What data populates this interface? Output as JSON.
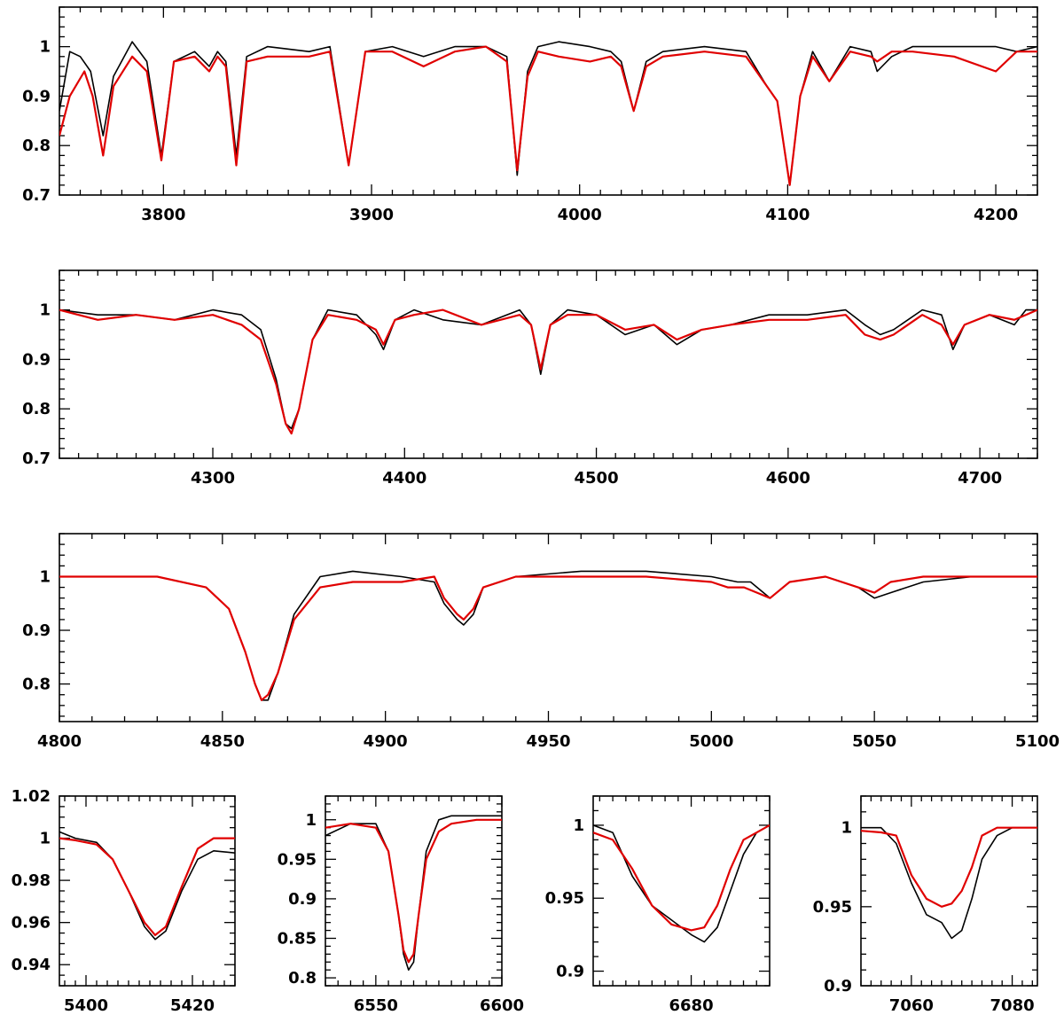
{
  "chart_data": [
    {
      "type": "line",
      "xlim": [
        3750,
        4220
      ],
      "ylim": [
        0.7,
        1.08
      ],
      "xticks": [
        3800,
        3900,
        4000,
        4100,
        4200
      ],
      "x_minor": 10,
      "yticks": [
        0.7,
        0.8,
        0.9,
        1
      ],
      "y_minor": 0.02,
      "series": [
        {
          "color": "#000000",
          "x": [
            3750,
            3755,
            3760,
            3765,
            3771,
            3776,
            3785,
            3792,
            3799,
            3805,
            3815,
            3822,
            3826,
            3830,
            3835,
            3840,
            3850,
            3870,
            3880,
            3889,
            3897,
            3910,
            3925,
            3940,
            3955,
            3965,
            3970,
            3975,
            3980,
            3990,
            4005,
            4015,
            4020,
            4026,
            4032,
            4040,
            4060,
            4080,
            4090,
            4095,
            4101,
            4106,
            4112,
            4120,
            4130,
            4140,
            4143,
            4150,
            4160,
            4180,
            4200,
            4210,
            4220
          ],
          "y": [
            0.87,
            0.99,
            0.98,
            0.95,
            0.82,
            0.94,
            1.01,
            0.97,
            0.78,
            0.97,
            0.99,
            0.96,
            0.99,
            0.97,
            0.78,
            0.98,
            1.0,
            0.99,
            1.0,
            0.76,
            0.99,
            1.0,
            0.98,
            1.0,
            1.0,
            0.98,
            0.74,
            0.95,
            1.0,
            1.01,
            1.0,
            0.99,
            0.97,
            0.87,
            0.97,
            0.99,
            1.0,
            0.99,
            0.92,
            0.89,
            0.72,
            0.9,
            0.99,
            0.93,
            1.0,
            0.99,
            0.95,
            0.98,
            1.0,
            1.0,
            1.0,
            0.99,
            1.0
          ]
        },
        {
          "color": "#e00000",
          "x": [
            3750,
            3755,
            3762,
            3766,
            3771,
            3776,
            3785,
            3792,
            3799,
            3805,
            3815,
            3822,
            3826,
            3830,
            3835,
            3840,
            3850,
            3870,
            3880,
            3889,
            3897,
            3910,
            3925,
            3940,
            3955,
            3965,
            3970,
            3975,
            3980,
            3990,
            4005,
            4015,
            4020,
            4026,
            4032,
            4040,
            4060,
            4080,
            4090,
            4095,
            4101,
            4106,
            4112,
            4120,
            4130,
            4140,
            4143,
            4150,
            4160,
            4180,
            4200,
            4210,
            4220
          ],
          "y": [
            0.82,
            0.9,
            0.95,
            0.9,
            0.78,
            0.92,
            0.98,
            0.95,
            0.77,
            0.97,
            0.98,
            0.95,
            0.98,
            0.96,
            0.76,
            0.97,
            0.98,
            0.98,
            0.99,
            0.76,
            0.99,
            0.99,
            0.96,
            0.99,
            1.0,
            0.97,
            0.75,
            0.94,
            0.99,
            0.98,
            0.97,
            0.98,
            0.96,
            0.87,
            0.96,
            0.98,
            0.99,
            0.98,
            0.92,
            0.89,
            0.72,
            0.9,
            0.98,
            0.93,
            0.99,
            0.98,
            0.97,
            0.99,
            0.99,
            0.98,
            0.95,
            0.99,
            0.99
          ]
        }
      ]
    },
    {
      "type": "line",
      "xlim": [
        4220,
        4730
      ],
      "ylim": [
        0.7,
        1.08
      ],
      "xticks": [
        4300,
        4400,
        4500,
        4600,
        4700
      ],
      "x_minor": 10,
      "yticks": [
        0.7,
        0.8,
        0.9,
        1
      ],
      "y_minor": 0.02,
      "series": [
        {
          "color": "#000000",
          "x": [
            4220,
            4240,
            4260,
            4280,
            4300,
            4315,
            4325,
            4333,
            4338,
            4341,
            4345,
            4352,
            4360,
            4375,
            4385,
            4389,
            4395,
            4405,
            4420,
            4440,
            4460,
            4466,
            4471,
            4476,
            4485,
            4500,
            4515,
            4530,
            4542,
            4555,
            4570,
            4590,
            4610,
            4630,
            4640,
            4648,
            4655,
            4670,
            4680,
            4686,
            4692,
            4705,
            4718,
            4724,
            4730
          ],
          "y": [
            1.0,
            0.99,
            0.99,
            0.98,
            1.0,
            0.99,
            0.96,
            0.86,
            0.77,
            0.76,
            0.8,
            0.94,
            1.0,
            0.99,
            0.95,
            0.92,
            0.98,
            1.0,
            0.98,
            0.97,
            1.0,
            0.97,
            0.87,
            0.97,
            1.0,
            0.99,
            0.95,
            0.97,
            0.93,
            0.96,
            0.97,
            0.99,
            0.99,
            1.0,
            0.97,
            0.95,
            0.96,
            1.0,
            0.99,
            0.92,
            0.97,
            0.99,
            0.97,
            1.0,
            1.0
          ]
        },
        {
          "color": "#e00000",
          "x": [
            4220,
            4240,
            4260,
            4280,
            4300,
            4315,
            4325,
            4333,
            4338,
            4341,
            4345,
            4352,
            4360,
            4375,
            4385,
            4389,
            4395,
            4405,
            4420,
            4440,
            4460,
            4466,
            4471,
            4476,
            4485,
            4500,
            4515,
            4530,
            4542,
            4555,
            4570,
            4590,
            4610,
            4630,
            4640,
            4648,
            4655,
            4670,
            4680,
            4686,
            4692,
            4705,
            4718,
            4724,
            4730
          ],
          "y": [
            1.0,
            0.98,
            0.99,
            0.98,
            0.99,
            0.97,
            0.94,
            0.85,
            0.77,
            0.75,
            0.8,
            0.94,
            0.99,
            0.98,
            0.96,
            0.93,
            0.98,
            0.99,
            1.0,
            0.97,
            0.99,
            0.97,
            0.88,
            0.97,
            0.99,
            0.99,
            0.96,
            0.97,
            0.94,
            0.96,
            0.97,
            0.98,
            0.98,
            0.99,
            0.95,
            0.94,
            0.95,
            0.99,
            0.97,
            0.93,
            0.97,
            0.99,
            0.98,
            0.99,
            1.0
          ]
        }
      ]
    },
    {
      "type": "line",
      "xlim": [
        4800,
        5100
      ],
      "ylim": [
        0.73,
        1.08
      ],
      "xticks": [
        4800,
        4850,
        4900,
        4950,
        5000,
        5050,
        5100
      ],
      "x_minor": 10,
      "yticks": [
        0.8,
        0.9,
        1
      ],
      "y_minor": 0.02,
      "series": [
        {
          "color": "#000000",
          "x": [
            4800,
            4830,
            4845,
            4852,
            4857,
            4860,
            4862,
            4864,
            4867,
            4872,
            4880,
            4890,
            4905,
            4915,
            4918,
            4922,
            4924,
            4927,
            4930,
            4940,
            4960,
            4980,
            5000,
            5008,
            5012,
            5018,
            5024,
            5035,
            5045,
            5050,
            5055,
            5065,
            5080,
            5100
          ],
          "y": [
            1.0,
            1.0,
            0.98,
            0.94,
            0.86,
            0.8,
            0.77,
            0.77,
            0.82,
            0.93,
            1.0,
            1.01,
            1.0,
            0.99,
            0.95,
            0.92,
            0.91,
            0.93,
            0.98,
            1.0,
            1.01,
            1.01,
            1.0,
            0.99,
            0.99,
            0.96,
            0.99,
            1.0,
            0.98,
            0.96,
            0.97,
            0.99,
            1.0,
            1.0
          ]
        },
        {
          "color": "#e00000",
          "x": [
            4800,
            4830,
            4845,
            4852,
            4857,
            4860,
            4862,
            4864,
            4867,
            4872,
            4880,
            4890,
            4905,
            4915,
            4918,
            4922,
            4924,
            4927,
            4930,
            4940,
            4960,
            4980,
            5000,
            5005,
            5010,
            5014,
            5018,
            5024,
            5035,
            5045,
            5050,
            5055,
            5065,
            5080,
            5100
          ],
          "y": [
            1.0,
            1.0,
            0.98,
            0.94,
            0.86,
            0.8,
            0.77,
            0.78,
            0.82,
            0.92,
            0.98,
            0.99,
            0.99,
            1.0,
            0.96,
            0.93,
            0.92,
            0.94,
            0.98,
            1.0,
            1.0,
            1.0,
            0.99,
            0.98,
            0.98,
            0.97,
            0.96,
            0.99,
            1.0,
            0.98,
            0.97,
            0.99,
            1.0,
            1.0,
            1.0
          ]
        }
      ]
    },
    {
      "type": "line",
      "xlim": [
        5395,
        5428
      ],
      "ylim": [
        0.93,
        1.02
      ],
      "xticks": [
        5400,
        5420
      ],
      "x_minor": 2,
      "yticks": [
        0.94,
        0.96,
        0.98,
        1,
        1.02
      ],
      "y_minor": 0.005,
      "series": [
        {
          "color": "#000000",
          "x": [
            5395,
            5398,
            5402,
            5405,
            5408,
            5411,
            5413,
            5415,
            5418,
            5421,
            5424,
            5428
          ],
          "y": [
            1.003,
            1.0,
            0.998,
            0.99,
            0.975,
            0.958,
            0.952,
            0.956,
            0.975,
            0.99,
            0.994,
            0.993
          ]
        },
        {
          "color": "#e00000",
          "x": [
            5395,
            5398,
            5402,
            5405,
            5408,
            5411,
            5413,
            5415,
            5418,
            5421,
            5424,
            5428
          ],
          "y": [
            1.0,
            0.999,
            0.997,
            0.99,
            0.975,
            0.96,
            0.954,
            0.958,
            0.977,
            0.995,
            1.0,
            1.0
          ]
        }
      ]
    },
    {
      "type": "line",
      "xlim": [
        6530,
        6600
      ],
      "ylim": [
        0.79,
        1.03
      ],
      "xticks": [
        6550,
        6600
      ],
      "x_minor": 5,
      "yticks": [
        0.8,
        0.85,
        0.9,
        0.95,
        1
      ],
      "y_minor": 0.01,
      "series": [
        {
          "color": "#000000",
          "x": [
            6530,
            6540,
            6550,
            6555,
            6559,
            6561,
            6563,
            6565,
            6567,
            6570,
            6575,
            6580,
            6590,
            6600
          ],
          "y": [
            0.98,
            0.995,
            0.995,
            0.96,
            0.88,
            0.83,
            0.81,
            0.82,
            0.88,
            0.96,
            1.0,
            1.005,
            1.005,
            1.005
          ]
        },
        {
          "color": "#e00000",
          "x": [
            6530,
            6540,
            6550,
            6555,
            6559,
            6561,
            6563,
            6565,
            6567,
            6570,
            6575,
            6580,
            6590,
            6600
          ],
          "y": [
            0.99,
            0.995,
            0.99,
            0.96,
            0.88,
            0.835,
            0.82,
            0.83,
            0.88,
            0.95,
            0.985,
            0.995,
            1.0,
            1.0
          ]
        }
      ]
    },
    {
      "type": "line",
      "xlim": [
        6665,
        6692
      ],
      "ylim": [
        0.89,
        1.02
      ],
      "xticks": [
        6680
      ],
      "x_minor": 2,
      "yticks": [
        0.9,
        0.95,
        1
      ],
      "y_minor": 0.01,
      "series": [
        {
          "color": "#000000",
          "x": [
            6665,
            6668,
            6671,
            6674,
            6677,
            6680,
            6682,
            6684,
            6686,
            6688,
            6690,
            6692
          ],
          "y": [
            1.0,
            0.995,
            0.965,
            0.945,
            0.935,
            0.925,
            0.92,
            0.93,
            0.955,
            0.98,
            0.995,
            1.0
          ]
        },
        {
          "color": "#e00000",
          "x": [
            6665,
            6668,
            6671,
            6674,
            6677,
            6680,
            6682,
            6684,
            6686,
            6688,
            6690,
            6692
          ],
          "y": [
            0.995,
            0.99,
            0.97,
            0.945,
            0.932,
            0.928,
            0.93,
            0.945,
            0.97,
            0.99,
            0.995,
            1.0
          ]
        }
      ]
    },
    {
      "type": "line",
      "xlim": [
        7050,
        7085
      ],
      "ylim": [
        0.9,
        1.02
      ],
      "xticks": [
        7060,
        7080
      ],
      "x_minor": 2,
      "yticks": [
        0.9,
        0.95,
        1
      ],
      "y_minor": 0.01,
      "series": [
        {
          "color": "#000000",
          "x": [
            7050,
            7054,
            7057,
            7060,
            7063,
            7066,
            7068,
            7070,
            7072,
            7074,
            7077,
            7080,
            7085
          ],
          "y": [
            1.0,
            1.0,
            0.99,
            0.965,
            0.945,
            0.94,
            0.93,
            0.935,
            0.955,
            0.98,
            0.995,
            1.0,
            1.0
          ]
        },
        {
          "color": "#e00000",
          "x": [
            7050,
            7054,
            7057,
            7060,
            7063,
            7066,
            7068,
            7070,
            7072,
            7074,
            7077,
            7080,
            7085
          ],
          "y": [
            0.998,
            0.997,
            0.995,
            0.97,
            0.955,
            0.95,
            0.952,
            0.96,
            0.975,
            0.995,
            1.0,
            1.0,
            1.0
          ]
        }
      ]
    }
  ]
}
